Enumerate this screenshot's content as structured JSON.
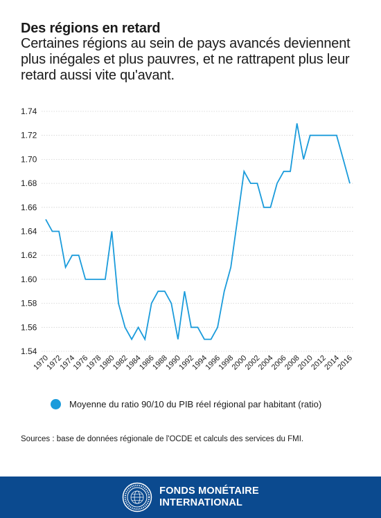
{
  "header": {
    "title": "Des régions en retard",
    "subtitle": "Certaines régions au sein de pays avancés deviennent plus inégales et plus pauvres, et ne rattrapent plus leur retard aussi vite qu'avant."
  },
  "colors": {
    "line": "#1a9bdb",
    "footer": "#0b4a8f",
    "grid": "#d0d0d0"
  },
  "chart_data": {
    "type": "line",
    "ylim": [
      1.54,
      1.74
    ],
    "yticks": [
      "1.54",
      "1.56",
      "1.58",
      "1.60",
      "1.62",
      "1.64",
      "1.66",
      "1.68",
      "1.70",
      "1.72",
      "1.74"
    ],
    "xlim": [
      1970,
      2016
    ],
    "xticks": [
      "1970",
      "1972",
      "1974",
      "1976",
      "1978",
      "1980",
      "1982",
      "1984",
      "1986",
      "1988",
      "1990",
      "1992",
      "1994",
      "1996",
      "1998",
      "2000",
      "2002",
      "2004",
      "2006",
      "2008",
      "2010",
      "2012",
      "2014",
      "2016"
    ],
    "grid": "horizontal",
    "legend_position": "bottom",
    "series": [
      {
        "name": "Moyenne du ratio 90/10 du PIB réel régional par habitant (ratio)",
        "x": [
          1970,
          1971,
          1972,
          1973,
          1974,
          1975,
          1976,
          1977,
          1978,
          1979,
          1980,
          1981,
          1982,
          1983,
          1984,
          1985,
          1986,
          1987,
          1988,
          1989,
          1990,
          1991,
          1992,
          1993,
          1994,
          1995,
          1996,
          1997,
          1998,
          1999,
          2000,
          2001,
          2002,
          2003,
          2004,
          2005,
          2006,
          2007,
          2008,
          2009,
          2010,
          2011,
          2012,
          2013,
          2014,
          2015,
          2016
        ],
        "values": [
          1.65,
          1.64,
          1.64,
          1.61,
          1.62,
          1.62,
          1.6,
          1.6,
          1.6,
          1.6,
          1.64,
          1.58,
          1.56,
          1.55,
          1.56,
          1.55,
          1.58,
          1.59,
          1.59,
          1.58,
          1.55,
          1.59,
          1.56,
          1.56,
          1.55,
          1.55,
          1.56,
          1.59,
          1.61,
          1.65,
          1.69,
          1.68,
          1.68,
          1.66,
          1.66,
          1.68,
          1.69,
          1.69,
          1.73,
          1.7,
          1.72,
          1.72,
          1.72,
          1.72,
          1.72,
          1.7,
          1.68
        ]
      }
    ]
  },
  "legend": {
    "label": "Moyenne du ratio 90/10 du PIB réel régional par habitant (ratio)"
  },
  "sources": "Sources : base de données régionale de l'OCDE et calculs des services du FMI.",
  "footer": {
    "org_line1": "FONDS MONÉTAIRE",
    "org_line2": "INTERNATIONAL",
    "seal_icon": "imf-seal-icon"
  }
}
